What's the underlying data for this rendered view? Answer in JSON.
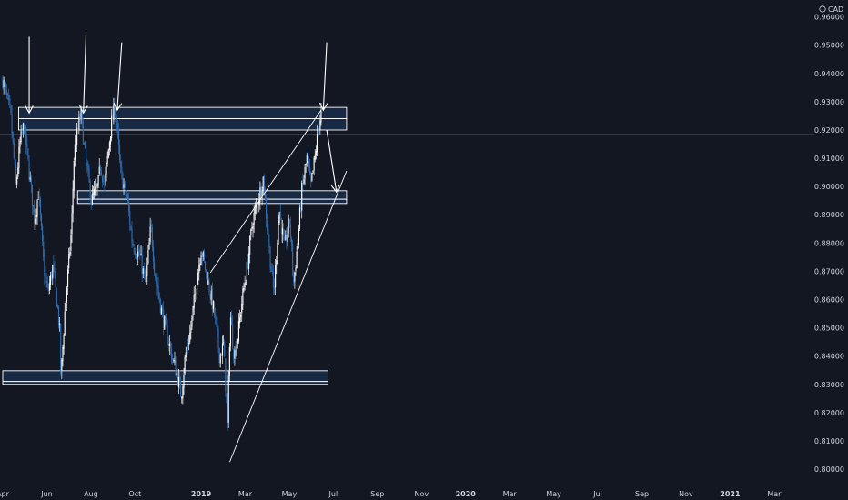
{
  "chart_data": {
    "type": "candlestick",
    "currency": "CAD",
    "y_ticks": [
      "0.96000",
      "0.95000",
      "0.94000",
      "0.93000",
      "0.92000",
      "0.91000",
      "0.90000",
      "0.89000",
      "0.88000",
      "0.87000",
      "0.86000",
      "0.85000",
      "0.84000",
      "0.83000",
      "0.82000",
      "0.81000",
      "0.80000"
    ],
    "x_ticks": [
      "Apr",
      "Jun",
      "Aug",
      "Oct",
      "2019",
      "Mar",
      "May",
      "Jul",
      "Sep",
      "Nov",
      "2020",
      "Mar",
      "May",
      "Jul",
      "Sep",
      "Nov",
      "2021",
      "Mar"
    ],
    "x_major": [
      "2019",
      "2020",
      "2021"
    ],
    "ylim": [
      0.7955,
      0.966
    ],
    "x_range": [
      "2018-04",
      "2021-03"
    ],
    "colors": {
      "background": "#131722",
      "up": "#ffffff",
      "down": "#2f6fb5",
      "zone": "#1e3a5f",
      "zone_border": "#ffffff",
      "arrow": "#ffffff"
    },
    "path_anchors": [
      [
        0.0,
        0.938
      ],
      [
        0.03,
        0.925
      ],
      [
        0.05,
        0.9
      ],
      [
        0.065,
        0.915
      ],
      [
        0.08,
        0.922
      ],
      [
        0.12,
        0.888
      ],
      [
        0.135,
        0.898
      ],
      [
        0.155,
        0.872
      ],
      [
        0.17,
        0.862
      ],
      [
        0.19,
        0.872
      ],
      [
        0.215,
        0.85
      ],
      [
        0.22,
        0.832
      ],
      [
        0.235,
        0.856
      ],
      [
        0.26,
        0.885
      ],
      [
        0.27,
        0.912
      ],
      [
        0.295,
        0.926
      ],
      [
        0.31,
        0.912
      ],
      [
        0.335,
        0.895
      ],
      [
        0.36,
        0.9
      ],
      [
        0.37,
        0.908
      ],
      [
        0.385,
        0.9
      ],
      [
        0.41,
        0.922
      ],
      [
        0.425,
        0.929
      ],
      [
        0.445,
        0.905
      ],
      [
        0.47,
        0.896
      ],
      [
        0.49,
        0.88
      ],
      [
        0.52,
        0.875
      ],
      [
        0.54,
        0.865
      ],
      [
        0.56,
        0.886
      ],
      [
        0.575,
        0.87
      ],
      [
        0.6,
        0.856
      ],
      [
        0.62,
        0.848
      ],
      [
        0.645,
        0.838
      ],
      [
        0.66,
        0.833
      ],
      [
        0.675,
        0.826
      ],
      [
        0.69,
        0.84
      ],
      [
        0.71,
        0.849
      ],
      [
        0.735,
        0.868
      ],
      [
        0.75,
        0.878
      ],
      [
        0.77,
        0.869
      ],
      [
        0.8,
        0.855
      ],
      [
        0.82,
        0.84
      ],
      [
        0.835,
        0.844
      ],
      [
        0.85,
        0.815
      ],
      [
        0.86,
        0.855
      ],
      [
        0.875,
        0.84
      ],
      [
        0.89,
        0.848
      ],
      [
        0.905,
        0.86
      ],
      [
        0.925,
        0.872
      ],
      [
        0.945,
        0.888
      ],
      [
        0.965,
        0.895
      ],
      [
        0.985,
        0.903
      ],
      [
        1.005,
        0.88
      ],
      [
        1.025,
        0.862
      ],
      [
        1.045,
        0.892
      ],
      [
        1.065,
        0.878
      ],
      [
        1.085,
        0.888
      ],
      [
        1.1,
        0.866
      ],
      [
        1.115,
        0.88
      ],
      [
        1.13,
        0.898
      ],
      [
        1.15,
        0.91
      ],
      [
        1.165,
        0.9
      ],
      [
        1.18,
        0.91
      ],
      [
        1.195,
        0.922
      ],
      [
        1.205,
        0.926
      ]
    ],
    "zones": [
      {
        "top": 0.928,
        "bottom": 0.924,
        "from": 0.06,
        "to": 1.3
      },
      {
        "top": 0.924,
        "bottom": 0.92,
        "from": 0.06,
        "to": 1.3
      },
      {
        "top": 0.8985,
        "bottom": 0.8955,
        "from": 0.283,
        "to": 1.3
      },
      {
        "top": 0.8955,
        "bottom": 0.894,
        "from": 0.283,
        "to": 1.3
      },
      {
        "top": 0.8348,
        "bottom": 0.831,
        "from": 0.0,
        "to": 1.23
      },
      {
        "top": 0.831,
        "bottom": 0.83,
        "from": 0.0,
        "to": 1.23
      }
    ],
    "resistance_line": {
      "price": 0.9185
    },
    "trendlines": [
      {
        "from": [
          0.785,
          0.8695
        ],
        "to": [
          1.205,
          0.9272
        ]
      },
      {
        "from": [
          0.858,
          0.8025
        ],
        "to": [
          1.3,
          0.9055
        ]
      }
    ],
    "arrows": [
      {
        "from": [
          0.1,
          0.953
        ],
        "to": [
          0.1,
          0.926
        ]
      },
      {
        "from": [
          0.315,
          0.954
        ],
        "to": [
          0.305,
          0.926
        ]
      },
      {
        "from": [
          0.45,
          0.951
        ],
        "to": [
          0.433,
          0.927
        ]
      },
      {
        "from": [
          1.225,
          0.951
        ],
        "to": [
          1.212,
          0.927
        ]
      },
      {
        "from": [
          1.225,
          0.92
        ],
        "to": [
          1.262,
          0.898
        ]
      }
    ]
  }
}
